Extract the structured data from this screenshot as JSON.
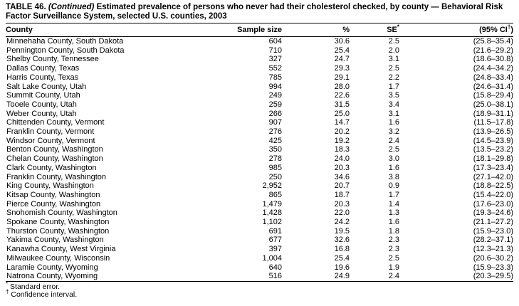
{
  "title": {
    "prefix": "TABLE 46. ",
    "continued": "(Continued)",
    "rest": " Estimated prevalence of persons who never had their cholesterol checked, by county — Behavioral Risk Factor Surveillance System, selected U.S. counties, 2003"
  },
  "table": {
    "columns": [
      {
        "parts": [
          {
            "t": "County"
          }
        ]
      },
      {
        "parts": [
          {
            "t": "Sample size"
          }
        ]
      },
      {
        "parts": [
          {
            "t": "%"
          }
        ]
      },
      {
        "parts": [
          {
            "t": "SE"
          },
          {
            "t": "*",
            "sup": true
          }
        ]
      },
      {
        "parts": [
          {
            "t": "(95% CI"
          },
          {
            "t": "†",
            "sup": true
          },
          {
            "t": ")"
          }
        ]
      }
    ],
    "rows": [
      {
        "county": "Minnehaha County, South Dakota",
        "sample_size": "604",
        "percent": "30.6",
        "se": "2.5",
        "ci": "(25.8–35.4)"
      },
      {
        "county": "Pennington County, South Dakota",
        "sample_size": "710",
        "percent": "25.4",
        "se": "2.0",
        "ci": "(21.6–29.2)"
      },
      {
        "county": "Shelby County, Tennessee",
        "sample_size": "327",
        "percent": "24.7",
        "se": "3.1",
        "ci": "(18.6–30.8)"
      },
      {
        "county": "Dallas County, Texas",
        "sample_size": "552",
        "percent": "29.3",
        "se": "2.5",
        "ci": "(24.4–34.2)"
      },
      {
        "county": "Harris County, Texas",
        "sample_size": "785",
        "percent": "29.1",
        "se": "2.2",
        "ci": "(24.8–33.4)"
      },
      {
        "county": "Salt Lake County, Utah",
        "sample_size": "994",
        "percent": "28.0",
        "se": "1.7",
        "ci": "(24.6–31.4)"
      },
      {
        "county": "Summit County, Utah",
        "sample_size": "249",
        "percent": "22.6",
        "se": "3.5",
        "ci": "(15.8–29.4)"
      },
      {
        "county": "Tooele County, Utah",
        "sample_size": "259",
        "percent": "31.5",
        "se": "3.4",
        "ci": "(25.0–38.1)"
      },
      {
        "county": "Weber County, Utah",
        "sample_size": "266",
        "percent": "25.0",
        "se": "3.1",
        "ci": "(18.9–31.1)"
      },
      {
        "county": "Chittenden County, Vermont",
        "sample_size": "907",
        "percent": "14.7",
        "se": "1.6",
        "ci": "(11.5–17.8)"
      },
      {
        "county": "Franklin County, Vermont",
        "sample_size": "276",
        "percent": "20.2",
        "se": "3.2",
        "ci": "(13.9–26.5)"
      },
      {
        "county": "Windsor County, Vermont",
        "sample_size": "425",
        "percent": "19.2",
        "se": "2.4",
        "ci": "(14.5–23.9)"
      },
      {
        "county": "Benton County, Washington",
        "sample_size": "350",
        "percent": "18.3",
        "se": "2.5",
        "ci": "(13.5–23.2)"
      },
      {
        "county": "Chelan County, Washington",
        "sample_size": "278",
        "percent": "24.0",
        "se": "3.0",
        "ci": "(18.1–29.8)"
      },
      {
        "county": "Clark County, Washington",
        "sample_size": "985",
        "percent": "20.3",
        "se": "1.6",
        "ci": "(17.3–23.4)"
      },
      {
        "county": "Franklin County, Washington",
        "sample_size": "250",
        "percent": "34.6",
        "se": "3.8",
        "ci": "(27.1–42.0)"
      },
      {
        "county": "King County, Washington",
        "sample_size": "2,952",
        "percent": "20.7",
        "se": "0.9",
        "ci": "(18.8–22.5)"
      },
      {
        "county": "Kitsap County, Washington",
        "sample_size": "865",
        "percent": "18.7",
        "se": "1.7",
        "ci": "(15.4–22.0)"
      },
      {
        "county": "Pierce County, Washington",
        "sample_size": "1,479",
        "percent": "20.3",
        "se": "1.4",
        "ci": "(17.6–23.0)"
      },
      {
        "county": "Snohomish County, Washington",
        "sample_size": "1,428",
        "percent": "22.0",
        "se": "1.3",
        "ci": "(19.3–24.6)"
      },
      {
        "county": "Spokane County, Washington",
        "sample_size": "1,102",
        "percent": "24.2",
        "se": "1.6",
        "ci": "(21.1–27.2)"
      },
      {
        "county": "Thurston County, Washington",
        "sample_size": "691",
        "percent": "19.5",
        "se": "1.8",
        "ci": "(15.9–23.0)"
      },
      {
        "county": "Yakima County, Washington",
        "sample_size": "677",
        "percent": "32.6",
        "se": "2.3",
        "ci": "(28.2–37.1)"
      },
      {
        "county": "Kanawha County, West Virginia",
        "sample_size": "397",
        "percent": "16.8",
        "se": "2.3",
        "ci": "(12.3–21.3)"
      },
      {
        "county": "Milwaukee County, Wisconsin",
        "sample_size": "1,004",
        "percent": "25.4",
        "se": "2.5",
        "ci": "(20.6–30.2)"
      },
      {
        "county": "Laramie County, Wyoming",
        "sample_size": "640",
        "percent": "19.6",
        "se": "1.9",
        "ci": "(15.9–23.3)"
      },
      {
        "county": "Natrona County, Wyoming",
        "sample_size": "516",
        "percent": "24.9",
        "se": "2.4",
        "ci": "(20.3–29.5)"
      }
    ]
  },
  "footnotes": [
    {
      "sup": "*",
      "text": " Standard error."
    },
    {
      "sup": "†",
      "text": " Confidence interval."
    }
  ]
}
